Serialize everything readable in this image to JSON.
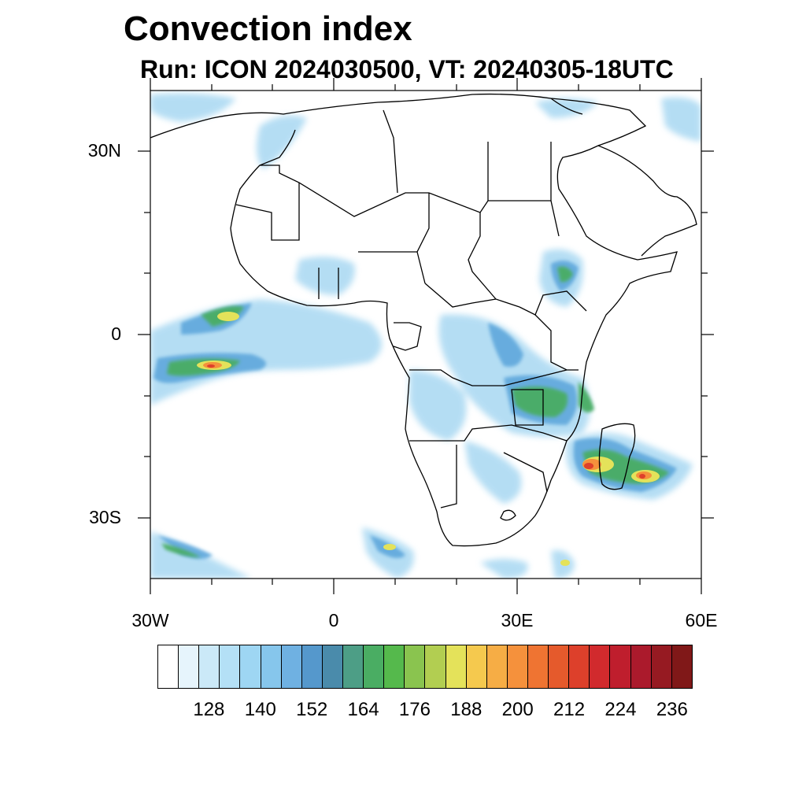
{
  "title": "Convection index",
  "subtitle": "Run: ICON 2024030500,  VT: 20240305-18UTC",
  "axes": {
    "lat_labels": [
      "30N",
      "0",
      "30S"
    ],
    "lon_labels": [
      "30W",
      "0",
      "30E",
      "60E"
    ]
  },
  "colorbar": {
    "colors": [
      "#ffffff",
      "#e6f4fc",
      "#cbe9f8",
      "#b4e0f6",
      "#9ed6f3",
      "#86c6ec",
      "#6fb1e2",
      "#5598cc",
      "#4a8bab",
      "#4d9e86",
      "#4aad63",
      "#55b94c",
      "#8ac44f",
      "#b2ce51",
      "#e4e25a",
      "#f5c94e",
      "#f6ad45",
      "#f5913c",
      "#ef7432",
      "#e55a2c",
      "#dd402b",
      "#d12a2d",
      "#bf1e2d",
      "#ab1a2c",
      "#961a22",
      "#801818"
    ],
    "tick_labels": [
      "128",
      "140",
      "152",
      "164",
      "176",
      "188",
      "200",
      "212",
      "224",
      "236"
    ]
  },
  "chart_data": {
    "type": "heatmap",
    "title": "Convection index",
    "subtitle": "Run: ICON 2024030500,  VT: 20240305-18UTC",
    "lon_range": [
      "30W",
      "60E"
    ],
    "lat_range": [
      "40S",
      "40N"
    ],
    "colorbar_ticks": [
      128,
      140,
      152,
      164,
      176,
      188,
      200,
      212,
      224,
      236
    ]
  }
}
